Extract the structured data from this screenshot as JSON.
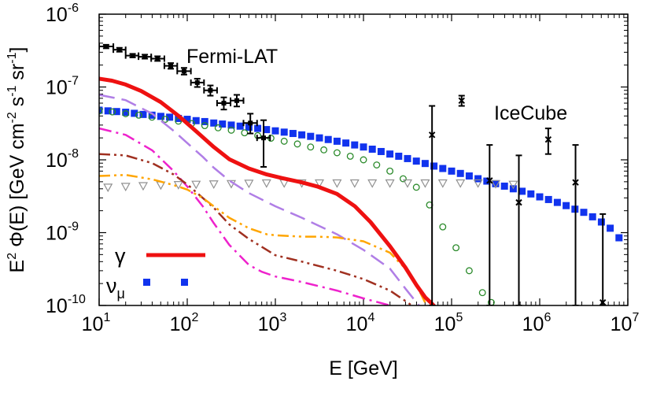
{
  "chart_data": {
    "type": "line",
    "title": "",
    "xlabel": "E [GeV]",
    "ylabel": "E² Φ(E) [GeV cm⁻² s⁻¹ sr⁻¹]",
    "ylabel_parts": {
      "e": "E",
      "e_sup": "2",
      "phi": " Φ(E) [GeV cm",
      "cm_sup": "-2",
      "s": " s",
      "s_sup": "-1",
      "sr": " sr",
      "sr_sup": "-1",
      "close": "]"
    },
    "xscale": "log",
    "yscale": "log",
    "xlim": [
      10,
      10000000
    ],
    "ylim": [
      1e-10,
      1e-06
    ],
    "x_ticks": [
      {
        "base": "10",
        "exp": "1",
        "value": 10
      },
      {
        "base": "10",
        "exp": "2",
        "value": 100
      },
      {
        "base": "10",
        "exp": "3",
        "value": 1000
      },
      {
        "base": "10",
        "exp": "4",
        "value": 10000
      },
      {
        "base": "10",
        "exp": "5",
        "value": 100000
      },
      {
        "base": "10",
        "exp": "6",
        "value": 1000000
      },
      {
        "base": "10",
        "exp": "7",
        "value": 10000000
      }
    ],
    "y_ticks": [
      {
        "base": "10",
        "exp": "-10",
        "value": 1e-10
      },
      {
        "base": "10",
        "exp": "-9",
        "value": 1e-09
      },
      {
        "base": "10",
        "exp": "-8",
        "value": 1e-08
      },
      {
        "base": "10",
        "exp": "-7",
        "value": 1e-07
      },
      {
        "base": "10",
        "exp": "-6",
        "value": 1e-06
      }
    ],
    "annotations": {
      "fermi": {
        "text": "Fermi-LAT",
        "x": 390.0,
        "y": 3.6e-07
      },
      "icecube": {
        "text": "IceCube",
        "x": 2800000.0,
        "y": 3.9e-08
      }
    },
    "legend": {
      "gamma": {
        "label": "γ",
        "color": "#ee1111"
      },
      "numu": {
        "label": "ν",
        "sub": "μ",
        "color": "#1133ee"
      }
    },
    "series": [
      {
        "name": "gamma total",
        "style": "solid",
        "color": "#ee1111",
        "width": 5,
        "x": [
          10,
          14,
          20,
          30,
          50,
          80,
          120,
          200,
          300,
          500,
          800,
          1200,
          2000,
          3000,
          5000,
          8000,
          12000,
          20000,
          30000,
          40000,
          50000,
          60000,
          65000
        ],
        "y": [
          1.3e-07,
          1.22e-07,
          1.08e-07,
          8.8e-08,
          6.2e-08,
          4e-08,
          2.6e-08,
          1.5e-08,
          1.02e-08,
          7.6e-09,
          6.3e-09,
          5.6e-09,
          4.9e-09,
          4.3e-09,
          3.4e-09,
          2.3e-09,
          1.4e-09,
          6.5e-10,
          3.3e-10,
          1.9e-10,
          1.3e-10,
          1.05e-10,
          9.5e-11
        ]
      },
      {
        "name": "component 1 (purple long-dash)",
        "style": "longdash",
        "color": "#b07ee6",
        "width": 2.5,
        "x": [
          10,
          20,
          40,
          70,
          100,
          150,
          200,
          300,
          500,
          1000,
          2000,
          5000,
          10000,
          20000,
          30000,
          40000,
          50000
        ],
        "y": [
          7.8e-08,
          6.6e-08,
          4.3e-08,
          2.5e-08,
          1.7e-08,
          1.1e-08,
          7.8e-09,
          5.2e-09,
          3.5e-09,
          2.3e-09,
          1.6e-09,
          9.5e-10,
          5.8e-10,
          3.2e-10,
          1.7e-10,
          1.1e-10,
          8e-11
        ]
      },
      {
        "name": "component 2 (magenta dash-dot)",
        "style": "dashdot",
        "color": "#ee22cc",
        "width": 2.5,
        "x": [
          10,
          20,
          40,
          70,
          100,
          150,
          200,
          300,
          500,
          700,
          1000,
          2000,
          5000,
          10000,
          20000,
          30000
        ],
        "y": [
          2.7e-08,
          2.2e-08,
          1.35e-08,
          7e-09,
          4.3e-09,
          2.3e-09,
          1.35e-09,
          6.8e-10,
          3.6e-10,
          2.9e-10,
          2.5e-10,
          2.1e-10,
          1.6e-10,
          1.25e-10,
          1e-10,
          9e-11
        ]
      },
      {
        "name": "component 3 (brown dash-dot-dot)",
        "style": "dashdotdot",
        "color": "#a03020",
        "width": 2.5,
        "x": [
          10,
          20,
          40,
          70,
          100,
          150,
          200,
          300,
          500,
          800,
          1000,
          2000,
          5000,
          10000,
          20000,
          30000,
          40000,
          50000
        ],
        "y": [
          1.2e-08,
          1.15e-08,
          9e-09,
          6.3e-09,
          4.6e-09,
          3e-09,
          2.2e-09,
          1.3e-09,
          8.2e-10,
          5.8e-10,
          4.9e-10,
          4e-10,
          3e-10,
          2.3e-10,
          1.6e-10,
          1.15e-10,
          9e-11,
          8e-11
        ]
      },
      {
        "name": "component 4 (orange dash-dot-dot)",
        "style": "dashdotdot",
        "color": "#ffa500",
        "width": 2.5,
        "x": [
          10,
          20,
          40,
          70,
          100,
          150,
          200,
          300,
          500,
          800,
          1000,
          2000,
          3000,
          5000,
          10000,
          20000,
          30000,
          40000,
          50000
        ],
        "y": [
          6e-09,
          6.2e-09,
          5.4e-09,
          4.5e-09,
          3.9e-09,
          3e-09,
          2.3e-09,
          1.6e-09,
          1.15e-09,
          9.5e-10,
          9.2e-10,
          8.8e-10,
          8.8e-10,
          8.6e-10,
          7.6e-10,
          5.3e-10,
          3.2e-10,
          1.9e-10,
          1.1e-10
        ]
      }
    ],
    "scatter": [
      {
        "name": "nu_mu",
        "marker": "filled-square",
        "color": "#1133ee",
        "x": [
          10,
          12.6,
          15.8,
          20,
          25.1,
          31.6,
          39.8,
          50.1,
          63.1,
          79.4,
          100,
          126,
          158,
          200,
          251,
          316,
          398,
          501,
          631,
          794,
          1000,
          1259,
          1585,
          1995,
          2512,
          3162,
          3981,
          5012,
          6310,
          7943,
          10000,
          12589,
          15849,
          19953,
          25119,
          31623,
          39811,
          50119,
          63096,
          79433,
          100000,
          125893,
          158489,
          199526,
          251189,
          316228,
          398107,
          501187,
          630957,
          794328,
          1000000,
          1258925,
          1584893,
          1995262,
          2511886,
          3162278,
          3981072,
          5011872,
          6309573,
          7943282
        ],
        "y": [
          4.8e-08,
          4.7e-08,
          4.6e-08,
          4.5e-08,
          4.35e-08,
          4.2e-08,
          4.1e-08,
          3.95e-08,
          3.85e-08,
          3.7e-08,
          3.6e-08,
          3.45e-08,
          3.35e-08,
          3.2e-08,
          3.1e-08,
          3e-08,
          2.9e-08,
          2.8e-08,
          2.7e-08,
          2.6e-08,
          2.5e-08,
          2.4e-08,
          2.3e-08,
          2.2e-08,
          2.1e-08,
          2e-08,
          1.9e-08,
          1.8e-08,
          1.7e-08,
          1.6e-08,
          1.5e-08,
          1.4e-08,
          1.3e-08,
          1.2e-08,
          1.12e-08,
          1.04e-08,
          9.6e-09,
          8.9e-09,
          8.2e-09,
          7.6e-09,
          7e-09,
          6.5e-09,
          6e-09,
          5.5e-09,
          5.1e-09,
          4.7e-09,
          4.35e-09,
          4e-09,
          3.7e-09,
          3.4e-09,
          3.1e-09,
          2.85e-09,
          2.6e-09,
          2.35e-09,
          2.1e-09,
          1.9e-09,
          1.65e-09,
          1.4e-09,
          1.15e-09,
          8.5e-10
        ]
      },
      {
        "name": "green open circles",
        "marker": "open-circle",
        "color": "#2a8a2a",
        "x": [
          10,
          14.1,
          20,
          28.2,
          39.8,
          56.2,
          79.4,
          112,
          158,
          224,
          316,
          447,
          631,
          891,
          1259,
          1778,
          2512,
          3548,
          5012,
          7079,
          10000,
          14125,
          19953,
          28184,
          39811,
          56234,
          79433,
          112202,
          158489,
          223872,
          281838
        ],
        "y": [
          4.7e-08,
          4.55e-08,
          4.3e-08,
          4.1e-08,
          3.85e-08,
          3.6e-08,
          3.4e-08,
          3.15e-08,
          2.95e-08,
          2.75e-08,
          2.55e-08,
          2.35e-08,
          2.15e-08,
          1.98e-08,
          1.8e-08,
          1.65e-08,
          1.5e-08,
          1.37e-08,
          1.25e-08,
          1.12e-08,
          1e-08,
          8.5e-09,
          7e-09,
          5.5e-09,
          4.2e-09,
          2.4e-09,
          1.2e-09,
          6.2e-10,
          3e-10,
          1.5e-10,
          1.1e-10
        ]
      },
      {
        "name": "gray open triangles",
        "marker": "open-triangle-down",
        "color": "#909090",
        "x": [
          12.6,
          20,
          31.6,
          50.1,
          79.4,
          126,
          200,
          316,
          501,
          794,
          1259,
          1995,
          3162,
          5012,
          7943,
          12589,
          19953,
          31623,
          50119,
          79433,
          125893,
          199526,
          316228,
          501187
        ],
        "y": [
          4.2e-09,
          4.3e-09,
          4.4e-09,
          4.5e-09,
          4.55e-09,
          4.6e-09,
          4.65e-09,
          4.7e-09,
          4.75e-09,
          4.8e-09,
          4.8e-09,
          4.8e-09,
          4.8e-09,
          4.8e-09,
          4.8e-09,
          4.8e-09,
          4.8e-09,
          4.8e-09,
          4.8e-09,
          4.8e-09,
          4.8e-09,
          4.8e-09,
          4.7e-09,
          4.6e-09
        ]
      }
    ],
    "errorbars": [
      {
        "name": "Fermi-LAT",
        "marker": "square",
        "color": "#000000",
        "points": [
          {
            "x": 12,
            "y": 3.6e-07,
            "xlo": 10,
            "xhi": 14.5,
            "ylo": 3.4e-07,
            "yhi": 3.8e-07
          },
          {
            "x": 17,
            "y": 3.25e-07,
            "xlo": 14.5,
            "xhi": 20,
            "ylo": 3.05e-07,
            "yhi": 3.45e-07
          },
          {
            "x": 24,
            "y": 2.7e-07,
            "xlo": 20,
            "xhi": 28,
            "ylo": 2.55e-07,
            "yhi": 2.85e-07
          },
          {
            "x": 33,
            "y": 2.6e-07,
            "xlo": 28,
            "xhi": 39,
            "ylo": 2.45e-07,
            "yhi": 2.78e-07
          },
          {
            "x": 46,
            "y": 2.45e-07,
            "xlo": 39,
            "xhi": 55,
            "ylo": 2.28e-07,
            "yhi": 2.64e-07
          },
          {
            "x": 65,
            "y": 1.95e-07,
            "xlo": 55,
            "xhi": 77,
            "ylo": 1.78e-07,
            "yhi": 2.13e-07
          },
          {
            "x": 92,
            "y": 1.65e-07,
            "xlo": 77,
            "xhi": 110,
            "ylo": 1.48e-07,
            "yhi": 1.83e-07
          },
          {
            "x": 130,
            "y": 1.15e-07,
            "xlo": 110,
            "xhi": 155,
            "ylo": 1e-07,
            "yhi": 1.3e-07
          },
          {
            "x": 183,
            "y": 9e-08,
            "xlo": 155,
            "xhi": 218,
            "ylo": 7.6e-08,
            "yhi": 1.05e-07
          },
          {
            "x": 260,
            "y": 6e-08,
            "xlo": 218,
            "xhi": 310,
            "ylo": 4.9e-08,
            "yhi": 7.2e-08
          },
          {
            "x": 365,
            "y": 6.5e-08,
            "xlo": 310,
            "xhi": 435,
            "ylo": 5.4e-08,
            "yhi": 7.8e-08
          },
          {
            "x": 520,
            "y": 3.2e-08,
            "xlo": 435,
            "xhi": 620,
            "ylo": 2.3e-08,
            "yhi": 4.3e-08
          },
          {
            "x": 735,
            "y": 2e-08,
            "xlo": 620,
            "xhi": 870,
            "ylo": 8e-09,
            "yhi": 3.5e-08
          }
        ]
      },
      {
        "name": "IceCube",
        "marker": "x",
        "color": "#000000",
        "points": [
          {
            "x": 60000,
            "y": 2.2e-08,
            "ylo": 1e-10,
            "yhi": 5.5e-08
          },
          {
            "x": 130000,
            "y": 6.5e-08,
            "ylo": 5.5e-08,
            "yhi": 7.6e-08
          },
          {
            "x": 270000,
            "y": 5.2e-09,
            "ylo": 1e-10,
            "yhi": 1.6e-08
          },
          {
            "x": 580000,
            "y": 2.6e-09,
            "ylo": 1e-10,
            "yhi": 1.15e-08
          },
          {
            "x": 1250000,
            "y": 1.9e-08,
            "ylo": 1.2e-08,
            "yhi": 2.7e-08
          },
          {
            "x": 2550000,
            "y": 4.9e-09,
            "ylo": 1e-10,
            "yhi": 1.6e-08
          },
          {
            "x": 5200000,
            "y": 1.1e-10,
            "ylo": 1e-10,
            "yhi": 1.8e-09
          }
        ]
      }
    ]
  }
}
